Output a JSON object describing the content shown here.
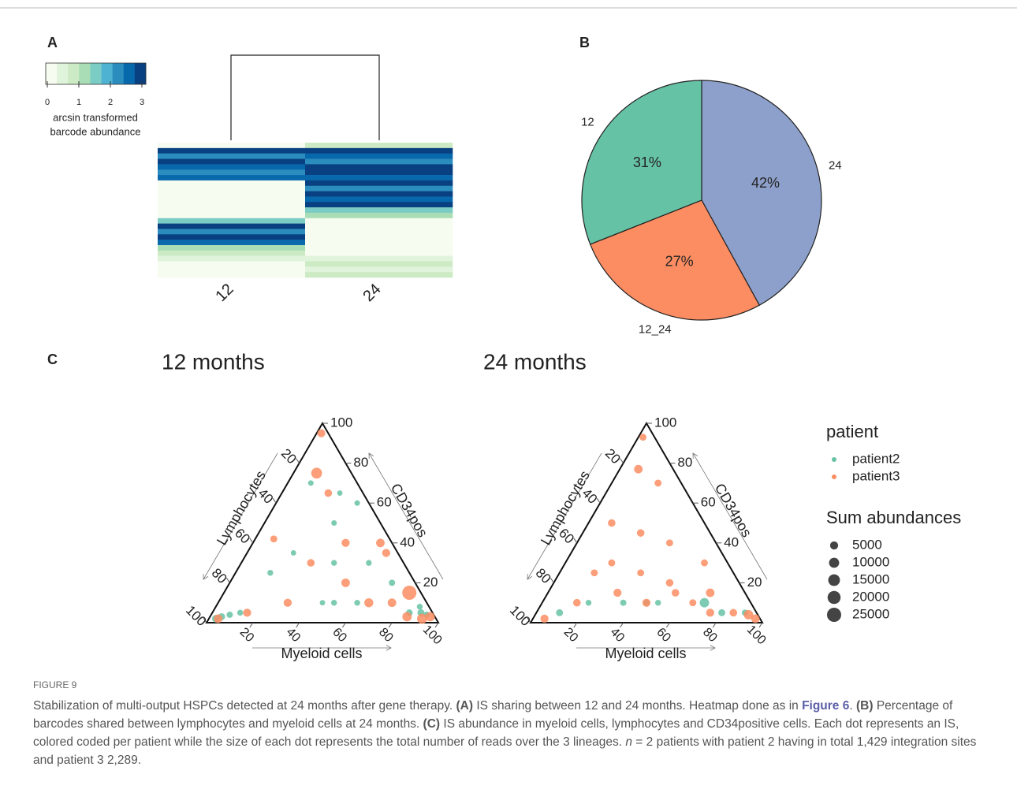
{
  "chart_data": [
    {
      "type": "heatmap",
      "panel": "A",
      "columns": [
        "12",
        "24"
      ],
      "rows": [
        [
          0.3,
          0.8
        ],
        [
          2.7,
          2.9
        ],
        [
          2.2,
          2.6
        ],
        [
          2.9,
          2.3
        ],
        [
          2.5,
          2.8
        ],
        [
          2.3,
          3.0
        ],
        [
          2.6,
          2.5
        ],
        [
          0,
          2.7
        ],
        [
          0,
          2.2
        ],
        [
          0,
          2.9
        ],
        [
          0,
          2.4
        ],
        [
          0,
          2.8
        ],
        [
          0,
          1.6
        ],
        [
          0,
          1.2
        ],
        [
          1.6,
          0
        ],
        [
          2.8,
          0.1
        ],
        [
          2.2,
          0
        ],
        [
          2.9,
          0
        ],
        [
          2.4,
          0
        ],
        [
          1.3,
          0
        ],
        [
          0.8,
          0
        ],
        [
          0.6,
          0.5
        ],
        [
          0,
          0.9
        ],
        [
          0,
          0.6
        ],
        [
          0,
          0.9
        ]
      ],
      "clim": [
        0,
        3
      ],
      "cticks": [
        0,
        1,
        2,
        3
      ],
      "colorbar_label": [
        "arcsin transformed",
        "barcode abundance"
      ],
      "colors": [
        "#f7fcf0",
        "#e0f3db",
        "#ccebc5",
        "#a8ddb5",
        "#7bccc4",
        "#4eb3d3",
        "#2b8cbe",
        "#0868ac",
        "#084081"
      ]
    },
    {
      "type": "pie",
      "panel": "B",
      "categories": [
        "24",
        "12_24",
        "12"
      ],
      "values": [
        42,
        27,
        31
      ],
      "value_labels": [
        "42%",
        "27%",
        "31%"
      ],
      "colors": [
        "#8da0cb",
        "#fc8d62",
        "#66c2a5"
      ]
    },
    {
      "type": "ternary",
      "panel": "C",
      "title": "12 months",
      "ticks": [
        20,
        40,
        60,
        80,
        100
      ],
      "axes": {
        "myeloid": "Myeloid cells",
        "lymphocytes": "Lymphocytes",
        "cd34": "CD34pos"
      },
      "series": [
        {
          "color": "#66c2a5",
          "myeloid": [
            5,
            8,
            3,
            12,
            90,
            93,
            85,
            88,
            40,
            30,
            55,
            20,
            60,
            10,
            45,
            70,
            15,
            35,
            25,
            50
          ],
          "lymphocytes": [
            92,
            88,
            95,
            83,
            5,
            3,
            10,
            4,
            30,
            20,
            15,
            45,
            30,
            20,
            45,
            10,
            60,
            5,
            10,
            40
          ],
          "cd34": [
            3,
            4,
            2,
            5,
            5,
            4,
            5,
            8,
            30,
            50,
            30,
            35,
            10,
            70,
            10,
            20,
            25,
            60,
            65,
            10
          ],
          "abundance": [
            3000,
            2000,
            4000,
            1500,
            3000,
            2000,
            2500,
            1500,
            1500,
            1200,
            1500,
            1000,
            1500,
            1200,
            1000,
            2000,
            1500,
            1200,
            1000,
            1500
          ]
        },
        {
          "color": "#fc8d62",
          "myeloid": [
            4,
            95,
            80,
            92,
            50,
            20,
            30,
            65,
            10,
            40,
            75,
            15,
            55,
            2,
            85,
            30,
            60,
            8
          ],
          "lymphocytes": [
            94,
            2,
            5,
            6,
            30,
            15,
            60,
            25,
            15,
            20,
            15,
            80,
            5,
            3,
            12,
            40,
            5,
            50
          ],
          "cd34": [
            2,
            3,
            15,
            2,
            20,
            65,
            10,
            10,
            75,
            40,
            10,
            5,
            40,
            95,
            3,
            30,
            35,
            42
          ],
          "abundance": [
            6000,
            8000,
            25000,
            10000,
            6000,
            4000,
            5000,
            7000,
            12000,
            5000,
            6000,
            5000,
            6000,
            5000,
            8000,
            4000,
            5000,
            3000
          ]
        }
      ]
    },
    {
      "type": "ternary",
      "panel": "",
      "title": "24 months",
      "ticks": [
        20,
        40,
        60,
        80,
        100
      ],
      "axes": {
        "myeloid": "Myeloid cells",
        "lymphocytes": "Lymphocytes",
        "cd34": "CD34pos"
      },
      "series": [
        {
          "color": "#66c2a5",
          "myeloid": [
            10,
            90,
            50,
            70,
            35,
            80,
            45,
            20
          ],
          "lymphocytes": [
            85,
            5,
            40,
            20,
            55,
            15,
            45,
            70
          ],
          "cd34": [
            5,
            5,
            10,
            10,
            10,
            5,
            10,
            10
          ],
          "abundance": [
            3000,
            2000,
            1500,
            8000,
            2000,
            3000,
            1500,
            1500
          ]
        },
        {
          "color": "#fc8d62",
          "myeloid": [
            5,
            92,
            96,
            15,
            30,
            50,
            70,
            20,
            10,
            40,
            60,
            25,
            8,
            2,
            45,
            85,
            35,
            55,
            15,
            75,
            20,
            65
          ],
          "lymphocytes": [
            93,
            4,
            2,
            75,
            55,
            30,
            15,
            50,
            40,
            20,
            10,
            30,
            15,
            5,
            45,
            10,
            40,
            30,
            60,
            20,
            10,
            25
          ],
          "cd34": [
            2,
            4,
            2,
            10,
            15,
            20,
            15,
            30,
            50,
            40,
            30,
            45,
            77,
            93,
            10,
            5,
            25,
            15,
            25,
            5,
            70,
            10
          ],
          "abundance": [
            5000,
            8000,
            6000,
            4000,
            5000,
            4000,
            6000,
            3000,
            4000,
            3000,
            3000,
            4000,
            6000,
            3000,
            5000,
            4000,
            3000,
            4000,
            3000,
            5000,
            3000,
            3000
          ]
        }
      ]
    }
  ],
  "legend": {
    "title": "patient",
    "items": [
      {
        "name": "patient2",
        "color": "#66c2a5"
      },
      {
        "name": "patient3",
        "color": "#fc8d62"
      }
    ],
    "size_title": "Sum abundances",
    "sizes": [
      5000,
      10000,
      15000,
      20000,
      25000
    ]
  },
  "caption": {
    "label": "FIGURE 9",
    "parts": [
      {
        "text": "Stabilization of multi-output HSPCs detected at 24 months after gene therapy. "
      },
      {
        "text": "(A)",
        "style": "bold"
      },
      {
        "text": " IS sharing between 12 and 24 months. Heatmap done as in "
      },
      {
        "text": "Figure 6",
        "style": "link"
      },
      {
        "text": ". "
      },
      {
        "text": "(B)",
        "style": "bold"
      },
      {
        "text": " Percentage of barcodes shared between lymphocytes and myeloid cells at 24 months. "
      },
      {
        "text": "(C)",
        "style": "bold"
      },
      {
        "text": " IS abundance in myeloid cells, lymphocytes and CD34positive cells. Each dot represents an IS, colored coded per patient while the size of each dot represents the total number of reads over the 3 lineages. "
      },
      {
        "text": "n",
        "style": "italic"
      },
      {
        "text": " = 2 patients with patient 2 having in total 1,429 integration sites and patient 3 2,289."
      }
    ]
  }
}
